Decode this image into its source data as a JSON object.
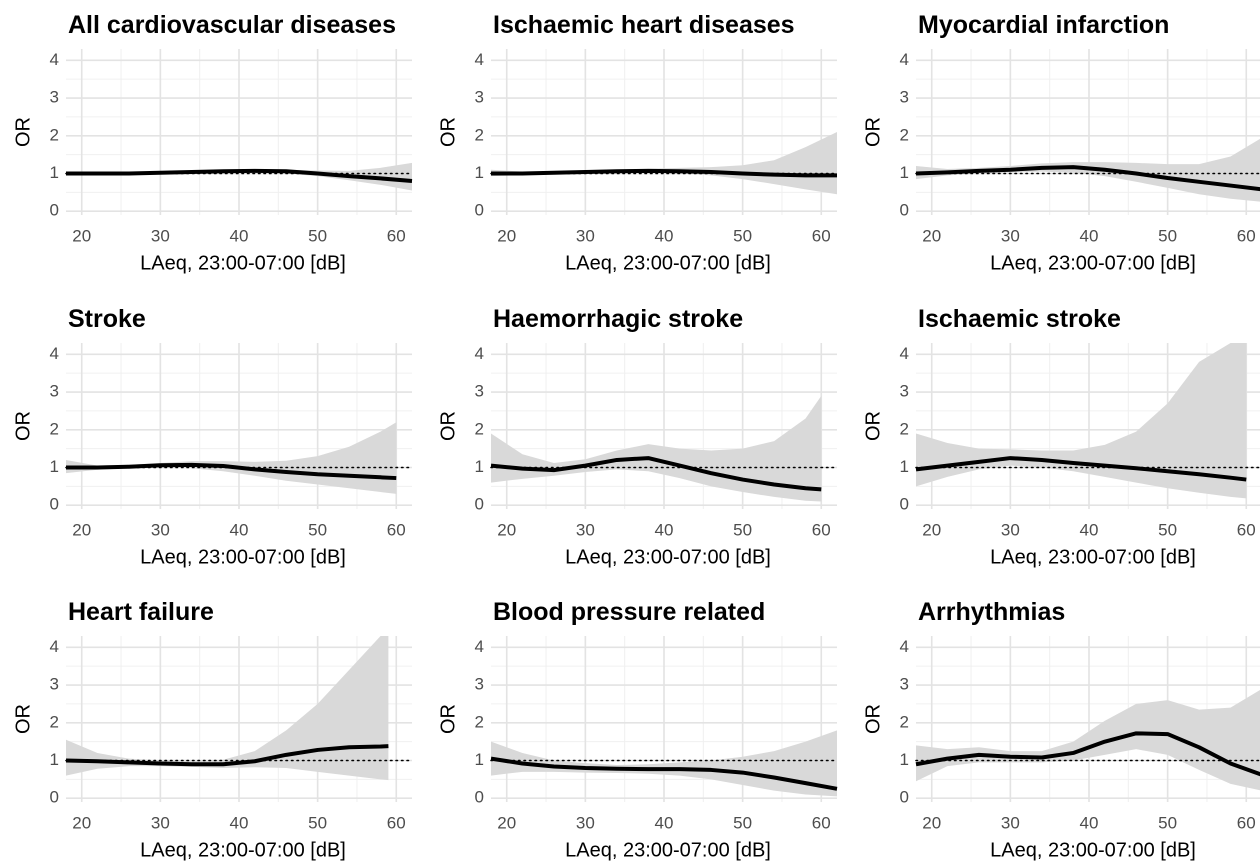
{
  "chart_data": [
    {
      "type": "line",
      "title": "All cardiovascular diseases",
      "x_label": "LAeq, 23:00-07:00 [dB]",
      "y_label": "OR",
      "x": [
        18,
        22,
        26,
        30,
        34,
        38,
        42,
        46,
        50,
        54,
        58,
        62
      ],
      "series": [
        {
          "color": "#000000",
          "band_color": "#d9d9d9",
          "values": [
            1,
            1,
            1,
            1.02,
            1.04,
            1.06,
            1.07,
            1.06,
            1.0,
            0.93,
            0.87,
            0.8
          ],
          "lower": [
            0.97,
            0.98,
            0.99,
            1.0,
            1.02,
            1.03,
            1.03,
            1.0,
            0.93,
            0.82,
            0.7,
            0.55
          ],
          "upper": [
            1.05,
            1.03,
            1.03,
            1.04,
            1.06,
            1.08,
            1.1,
            1.1,
            1.08,
            1.07,
            1.15,
            1.28
          ]
        }
      ],
      "reference": 1,
      "xlim": [
        18,
        62
      ],
      "ylim": [
        -0.1,
        4.3
      ],
      "xticks": [
        20,
        30,
        40,
        50,
        60
      ],
      "yticks": [
        0,
        1,
        2,
        3,
        4
      ],
      "xminor": [
        25,
        35,
        45,
        55
      ],
      "yminor": [
        0.5,
        1.5,
        2.5,
        3.5
      ],
      "grid": true
    },
    {
      "type": "line",
      "title": "Ischaemic heart diseases",
      "x_label": "LAeq, 23:00-07:00 [dB]",
      "y_label": "OR",
      "x": [
        18,
        22,
        26,
        30,
        34,
        38,
        42,
        46,
        50,
        54,
        58,
        62
      ],
      "series": [
        {
          "color": "#000000",
          "band_color": "#d9d9d9",
          "values": [
            1,
            1,
            1.02,
            1.04,
            1.06,
            1.07,
            1.06,
            1.04,
            1.0,
            0.97,
            0.95,
            0.95
          ],
          "lower": [
            0.93,
            0.96,
            0.99,
            1.01,
            1.02,
            1.02,
            1.0,
            0.95,
            0.85,
            0.72,
            0.58,
            0.45
          ],
          "upper": [
            1.1,
            1.05,
            1.05,
            1.07,
            1.1,
            1.13,
            1.15,
            1.17,
            1.22,
            1.35,
            1.7,
            2.1
          ]
        }
      ],
      "reference": 1,
      "xlim": [
        18,
        62
      ],
      "ylim": [
        -0.1,
        4.3
      ],
      "xticks": [
        20,
        30,
        40,
        50,
        60
      ],
      "yticks": [
        0,
        1,
        2,
        3,
        4
      ],
      "xminor": [
        25,
        35,
        45,
        55
      ],
      "yminor": [
        0.5,
        1.5,
        2.5,
        3.5
      ],
      "grid": true
    },
    {
      "type": "line",
      "title": "Myocardial infarction",
      "x_label": "LAeq, 23:00-07:00 [dB]",
      "y_label": "OR",
      "x": [
        18,
        22,
        26,
        30,
        34,
        38,
        42,
        46,
        50,
        54,
        58,
        62
      ],
      "series": [
        {
          "color": "#000000",
          "band_color": "#d9d9d9",
          "values": [
            1,
            1.03,
            1.07,
            1.1,
            1.15,
            1.17,
            1.1,
            1.0,
            0.88,
            0.78,
            0.68,
            0.58
          ],
          "lower": [
            0.85,
            0.95,
            1.0,
            1.03,
            1.05,
            1.02,
            0.93,
            0.78,
            0.62,
            0.45,
            0.33,
            0.25
          ],
          "upper": [
            1.2,
            1.12,
            1.15,
            1.2,
            1.27,
            1.3,
            1.3,
            1.28,
            1.25,
            1.25,
            1.45,
            1.95
          ]
        }
      ],
      "reference": 1,
      "xlim": [
        18,
        62
      ],
      "ylim": [
        -0.1,
        4.3
      ],
      "xticks": [
        20,
        30,
        40,
        50,
        60
      ],
      "yticks": [
        0,
        1,
        2,
        3,
        4
      ],
      "xminor": [
        25,
        35,
        45,
        55
      ],
      "yminor": [
        0.5,
        1.5,
        2.5,
        3.5
      ],
      "grid": true
    },
    {
      "type": "line",
      "title": "Stroke",
      "x_label": "LAeq, 23:00-07:00 [dB]",
      "y_label": "OR",
      "x": [
        18,
        22,
        26,
        30,
        34,
        38,
        42,
        46,
        50,
        54,
        58,
        60
      ],
      "series": [
        {
          "color": "#000000",
          "band_color": "#d9d9d9",
          "values": [
            1,
            1,
            1.02,
            1.06,
            1.07,
            1.04,
            0.95,
            0.88,
            0.82,
            0.78,
            0.74,
            0.72
          ],
          "lower": [
            0.85,
            0.94,
            0.98,
            1.0,
            0.98,
            0.9,
            0.78,
            0.65,
            0.55,
            0.45,
            0.35,
            0.3
          ],
          "upper": [
            1.2,
            1.05,
            1.07,
            1.12,
            1.17,
            1.17,
            1.15,
            1.18,
            1.3,
            1.55,
            1.95,
            2.2
          ]
        }
      ],
      "reference": 1,
      "xlim": [
        18,
        62
      ],
      "ylim": [
        -0.1,
        4.3
      ],
      "xticks": [
        20,
        30,
        40,
        50,
        60
      ],
      "yticks": [
        0,
        1,
        2,
        3,
        4
      ],
      "xminor": [
        25,
        35,
        45,
        55
      ],
      "yminor": [
        0.5,
        1.5,
        2.5,
        3.5
      ],
      "grid": true
    },
    {
      "type": "line",
      "title": "Haemorrhagic stroke",
      "x_label": "LAeq, 23:00-07:00 [dB]",
      "y_label": "OR",
      "x": [
        18,
        22,
        26,
        30,
        34,
        38,
        42,
        46,
        50,
        54,
        58,
        60
      ],
      "series": [
        {
          "color": "#000000",
          "band_color": "#d9d9d9",
          "values": [
            1.05,
            0.97,
            0.93,
            1.05,
            1.2,
            1.25,
            1.05,
            0.85,
            0.68,
            0.55,
            0.45,
            0.42
          ],
          "lower": [
            0.6,
            0.7,
            0.78,
            0.88,
            0.95,
            0.9,
            0.72,
            0.5,
            0.35,
            0.22,
            0.12,
            0.1
          ],
          "upper": [
            1.9,
            1.35,
            1.12,
            1.22,
            1.45,
            1.62,
            1.5,
            1.45,
            1.5,
            1.7,
            2.3,
            2.9
          ]
        }
      ],
      "reference": 1,
      "xlim": [
        18,
        62
      ],
      "ylim": [
        -0.1,
        4.3
      ],
      "xticks": [
        20,
        30,
        40,
        50,
        60
      ],
      "yticks": [
        0,
        1,
        2,
        3,
        4
      ],
      "xminor": [
        25,
        35,
        45,
        55
      ],
      "yminor": [
        0.5,
        1.5,
        2.5,
        3.5
      ],
      "grid": true
    },
    {
      "type": "line",
      "title": "Ischaemic stroke",
      "x_label": "LAeq, 23:00-07:00 [dB]",
      "y_label": "OR",
      "x": [
        18,
        22,
        26,
        30,
        34,
        38,
        42,
        46,
        50,
        54,
        58,
        60
      ],
      "series": [
        {
          "color": "#000000",
          "band_color": "#d9d9d9",
          "values": [
            0.95,
            1.05,
            1.15,
            1.25,
            1.2,
            1.12,
            1.05,
            0.98,
            0.9,
            0.82,
            0.73,
            0.68
          ],
          "lower": [
            0.5,
            0.75,
            0.95,
            1.05,
            1.0,
            0.9,
            0.75,
            0.6,
            0.45,
            0.33,
            0.22,
            0.18
          ],
          "upper": [
            1.9,
            1.65,
            1.5,
            1.48,
            1.45,
            1.45,
            1.6,
            1.95,
            2.7,
            3.8,
            4.3,
            4.3
          ]
        }
      ],
      "reference": 1,
      "xlim": [
        18,
        62
      ],
      "ylim": [
        -0.1,
        4.3
      ],
      "xticks": [
        20,
        30,
        40,
        50,
        60
      ],
      "yticks": [
        0,
        1,
        2,
        3,
        4
      ],
      "xminor": [
        25,
        35,
        45,
        55
      ],
      "yminor": [
        0.5,
        1.5,
        2.5,
        3.5
      ],
      "grid": true
    },
    {
      "type": "line",
      "title": "Heart failure",
      "x_label": "LAeq, 23:00-07:00 [dB]",
      "y_label": "OR",
      "x": [
        18,
        22,
        26,
        30,
        34,
        38,
        42,
        46,
        50,
        54,
        58,
        59
      ],
      "series": [
        {
          "color": "#000000",
          "band_color": "#d9d9d9",
          "values": [
            1,
            0.98,
            0.95,
            0.92,
            0.9,
            0.9,
            0.98,
            1.15,
            1.28,
            1.35,
            1.37,
            1.38
          ],
          "lower": [
            0.6,
            0.78,
            0.85,
            0.85,
            0.83,
            0.8,
            0.82,
            0.8,
            0.7,
            0.6,
            0.5,
            0.48
          ],
          "upper": [
            1.55,
            1.2,
            1.05,
            1.0,
            0.98,
            1.02,
            1.25,
            1.8,
            2.5,
            3.4,
            4.3,
            4.3
          ]
        }
      ],
      "reference": 1,
      "xlim": [
        18,
        62
      ],
      "ylim": [
        -0.1,
        4.3
      ],
      "xticks": [
        20,
        30,
        40,
        50,
        60
      ],
      "yticks": [
        0,
        1,
        2,
        3,
        4
      ],
      "xminor": [
        25,
        35,
        45,
        55
      ],
      "yminor": [
        0.5,
        1.5,
        2.5,
        3.5
      ],
      "grid": true
    },
    {
      "type": "line",
      "title": "Blood pressure related",
      "x_label": "LAeq, 23:00-07:00 [dB]",
      "y_label": "OR",
      "x": [
        18,
        22,
        26,
        30,
        34,
        38,
        42,
        46,
        50,
        54,
        58,
        62
      ],
      "series": [
        {
          "color": "#000000",
          "band_color": "#d9d9d9",
          "values": [
            1.05,
            0.92,
            0.84,
            0.8,
            0.78,
            0.77,
            0.77,
            0.75,
            0.68,
            0.55,
            0.4,
            0.25
          ],
          "lower": [
            0.6,
            0.7,
            0.7,
            0.68,
            0.67,
            0.65,
            0.6,
            0.5,
            0.35,
            0.2,
            0.1,
            0.05
          ],
          "upper": [
            1.5,
            1.2,
            1.0,
            0.93,
            0.88,
            0.9,
            0.95,
            1.0,
            1.1,
            1.25,
            1.5,
            1.8
          ]
        }
      ],
      "reference": 1,
      "xlim": [
        18,
        62
      ],
      "ylim": [
        -0.1,
        4.3
      ],
      "xticks": [
        20,
        30,
        40,
        50,
        60
      ],
      "yticks": [
        0,
        1,
        2,
        3,
        4
      ],
      "xminor": [
        25,
        35,
        45,
        55
      ],
      "yminor": [
        0.5,
        1.5,
        2.5,
        3.5
      ],
      "grid": true
    },
    {
      "type": "line",
      "title": "Arrhythmias",
      "x_label": "LAeq, 23:00-07:00 [dB]",
      "y_label": "OR",
      "x": [
        18,
        22,
        26,
        30,
        34,
        38,
        42,
        46,
        50,
        54,
        58,
        62
      ],
      "series": [
        {
          "color": "#000000",
          "band_color": "#d9d9d9",
          "values": [
            0.9,
            1.05,
            1.15,
            1.1,
            1.08,
            1.2,
            1.5,
            1.72,
            1.7,
            1.35,
            0.92,
            0.62
          ],
          "lower": [
            0.45,
            0.85,
            0.95,
            0.95,
            0.95,
            1.0,
            1.15,
            1.3,
            1.15,
            0.75,
            0.38,
            0.2
          ],
          "upper": [
            1.4,
            1.3,
            1.35,
            1.25,
            1.25,
            1.5,
            2.05,
            2.5,
            2.6,
            2.35,
            2.4,
            2.9
          ]
        }
      ],
      "reference": 1,
      "xlim": [
        18,
        62
      ],
      "ylim": [
        -0.1,
        4.3
      ],
      "xticks": [
        20,
        30,
        40,
        50,
        60
      ],
      "yticks": [
        0,
        1,
        2,
        3,
        4
      ],
      "xminor": [
        25,
        35,
        45,
        55
      ],
      "yminor": [
        0.5,
        1.5,
        2.5,
        3.5
      ],
      "grid": true
    }
  ]
}
